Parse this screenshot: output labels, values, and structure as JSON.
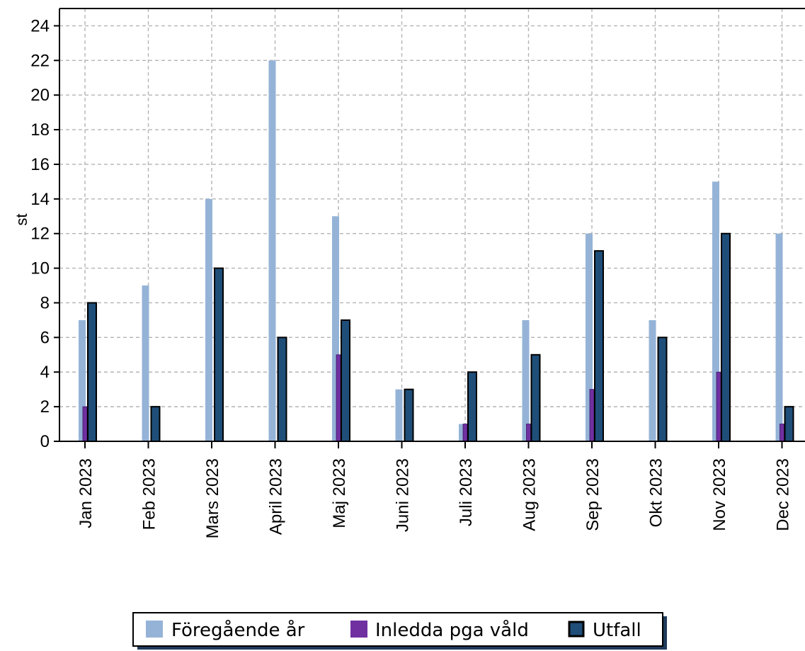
{
  "chart_data": {
    "type": "bar",
    "ylabel": "st",
    "ylim": [
      0,
      25
    ],
    "yticks": [
      0,
      2,
      4,
      6,
      8,
      10,
      12,
      14,
      16,
      18,
      20,
      22,
      24
    ],
    "grid": true,
    "legend_position": "bottom",
    "categories": [
      "Jan 2023",
      "Feb 2023",
      "Mars 2023",
      "April 2023",
      "Maj 2023",
      "Juni 2023",
      "Juli 2023",
      "Aug 2023",
      "Sep 2023",
      "Okt 2023",
      "Nov 2023",
      "Dec 2023"
    ],
    "series": [
      {
        "name": "Föregående år",
        "color": "#95b3d7",
        "values": [
          7,
          9,
          14,
          22,
          13,
          3,
          1,
          7,
          12,
          7,
          15,
          12
        ]
      },
      {
        "name": "Inledda pga våld",
        "color": "#7030a0",
        "values": [
          2,
          0,
          0,
          0,
          5,
          0,
          1,
          1,
          3,
          0,
          4,
          1
        ]
      },
      {
        "name": "Utfall",
        "color": "#1f4e79",
        "values": [
          8,
          2,
          10,
          6,
          7,
          3,
          4,
          5,
          11,
          6,
          12,
          2
        ]
      }
    ]
  }
}
